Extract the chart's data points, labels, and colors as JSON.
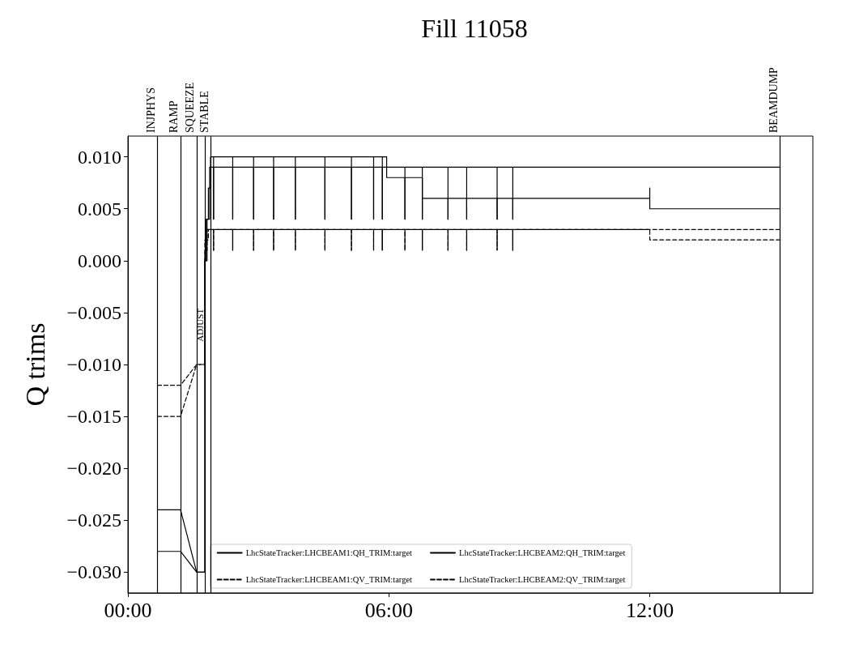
{
  "chart_data": {
    "type": "line",
    "title": "Fill 11058",
    "ylabel": "Q trims",
    "xlim": [
      0,
      15.75
    ],
    "xticks": [
      {
        "value": 0,
        "label": "00:00"
      },
      {
        "value": 6,
        "label": "06:00"
      },
      {
        "value": 12,
        "label": "12:00"
      }
    ],
    "ylim": [
      -0.032,
      0.012
    ],
    "yticks": [
      {
        "value": 0.01,
        "label": "0.010"
      },
      {
        "value": 0.005,
        "label": "0.005"
      },
      {
        "value": 0,
        "label": "0.000"
      },
      {
        "value": -0.005,
        "label": "−0.005"
      },
      {
        "value": -0.01,
        "label": "−0.010"
      },
      {
        "value": -0.015,
        "label": "−0.015"
      },
      {
        "value": -0.02,
        "label": "−0.020"
      },
      {
        "value": -0.025,
        "label": "−0.025"
      },
      {
        "value": -0.03,
        "label": "−0.030"
      }
    ],
    "grid": false,
    "legend": "bottom",
    "marker": "none",
    "series": [
      {
        "name": "LhcStateTracker:LHCBEAM1:QH_TRIM:target",
        "color": "#000000",
        "line_style": "solid",
        "x": [
          0.68,
          1.21,
          1.58,
          1.77,
          1.77,
          1.8,
          1.8,
          1.85,
          1.85,
          1.9,
          1.9,
          1.97,
          1.97,
          1.97,
          2.41,
          2.41,
          2.41,
          2.89,
          2.89,
          2.89,
          3.35,
          3.35,
          3.35,
          3.85,
          3.85,
          3.85,
          4.53,
          4.53,
          4.53,
          5.14,
          5.14,
          5.14,
          5.65,
          5.65,
          5.65,
          5.85,
          5.85,
          5.85,
          5.95,
          5.95,
          6.37,
          6.37,
          6.37,
          6.77,
          6.77,
          6.77,
          7.36,
          7.36,
          7.36,
          7.79,
          7.79,
          7.79,
          8.49,
          8.49,
          8.49,
          8.85,
          8.85,
          8.85,
          12,
          12,
          12,
          15
        ],
        "values": [
          -0.024,
          -0.024,
          -0.03,
          -0.03,
          0,
          0,
          0.004,
          0.004,
          0.007,
          0.007,
          0.01,
          0.01,
          0.004,
          0.01,
          0.01,
          0.004,
          0.01,
          0.01,
          0.004,
          0.01,
          0.01,
          0.004,
          0.01,
          0.01,
          0.004,
          0.01,
          0.01,
          0.004,
          0.01,
          0.01,
          0.004,
          0.01,
          0.01,
          0.004,
          0.01,
          0.01,
          0.004,
          0.01,
          0.01,
          0.008,
          0.008,
          0.004,
          0.008,
          0.008,
          0.004,
          0.006,
          0.006,
          0.004,
          0.006,
          0.006,
          0.004,
          0.006,
          0.006,
          0.004,
          0.006,
          0.006,
          0.004,
          0.006,
          0.006,
          0.007,
          0.005,
          0.005
        ]
      },
      {
        "name": "LhcStateTracker:LHCBEAM1:QV_TRIM:target",
        "color": "#000000",
        "line_style": "dashed",
        "x": [
          0.68,
          1.21,
          1.58,
          1.77,
          1.77,
          1.85,
          1.85,
          1.97,
          1.97,
          1.97,
          2.41,
          2.41,
          2.41,
          2.89,
          2.89,
          2.89,
          3.35,
          3.35,
          3.35,
          3.85,
          3.85,
          3.85,
          4.53,
          4.53,
          4.53,
          5.14,
          5.14,
          5.14,
          5.65,
          5.65,
          5.65,
          5.85,
          5.85,
          5.85,
          6.37,
          6.37,
          6.37,
          6.77,
          6.77,
          6.77,
          7.36,
          7.36,
          7.36,
          7.79,
          7.79,
          7.79,
          8.49,
          8.49,
          8.49,
          8.85,
          8.85,
          8.85,
          15
        ],
        "values": [
          -0.012,
          -0.012,
          -0.01,
          -0.01,
          0.002,
          0.002,
          0.003,
          0.003,
          0.001,
          0.003,
          0.003,
          0.001,
          0.003,
          0.003,
          0.001,
          0.003,
          0.003,
          0.001,
          0.003,
          0.003,
          0.001,
          0.003,
          0.003,
          0.001,
          0.003,
          0.003,
          0.001,
          0.003,
          0.003,
          0.001,
          0.003,
          0.003,
          0.001,
          0.003,
          0.003,
          0.001,
          0.003,
          0.003,
          0.001,
          0.003,
          0.003,
          0.001,
          0.003,
          0.003,
          0.001,
          0.003,
          0.003,
          0.001,
          0.003,
          0.003,
          0.001,
          0.003,
          0.003
        ]
      },
      {
        "name": "LhcStateTracker:LHCBEAM2:QH_TRIM:target",
        "color": "#000000",
        "line_style": "solid",
        "x": [
          0.68,
          1.21,
          1.58,
          1.77,
          1.77,
          1.82,
          1.82,
          1.88,
          1.88,
          1.97,
          1.97,
          1.97,
          2.41,
          2.41,
          2.41,
          2.89,
          2.89,
          2.89,
          3.35,
          3.35,
          3.35,
          3.85,
          3.85,
          3.85,
          4.53,
          4.53,
          4.53,
          5.14,
          5.14,
          5.14,
          5.65,
          5.65,
          5.65,
          5.85,
          5.85,
          5.85,
          6.37,
          6.37,
          6.37,
          6.77,
          6.77,
          6.77,
          7.36,
          7.36,
          7.36,
          7.79,
          7.79,
          7.79,
          8.49,
          8.49,
          8.49,
          8.85,
          8.85,
          8.85,
          15
        ],
        "values": [
          -0.028,
          -0.028,
          -0.03,
          -0.03,
          0,
          0,
          0.004,
          0.004,
          0.009,
          0.009,
          0.004,
          0.009,
          0.009,
          0.004,
          0.009,
          0.009,
          0.004,
          0.009,
          0.009,
          0.004,
          0.009,
          0.009,
          0.004,
          0.009,
          0.009,
          0.004,
          0.009,
          0.009,
          0.004,
          0.009,
          0.009,
          0.004,
          0.009,
          0.009,
          0.004,
          0.009,
          0.009,
          0.004,
          0.009,
          0.009,
          0.004,
          0.009,
          0.009,
          0.004,
          0.009,
          0.009,
          0.004,
          0.009,
          0.009,
          0.004,
          0.009,
          0.009,
          0.004,
          0.009,
          0.009
        ]
      },
      {
        "name": "LhcStateTracker:LHCBEAM2:QV_TRIM:target",
        "color": "#000000",
        "line_style": "dashed",
        "x": [
          0.68,
          1.21,
          1.58,
          1.77,
          1.77,
          1.82,
          1.82,
          1.97,
          1.97,
          1.97,
          2.41,
          2.41,
          2.41,
          2.89,
          2.89,
          2.89,
          3.35,
          3.35,
          3.35,
          3.85,
          3.85,
          3.85,
          4.53,
          4.53,
          4.53,
          5.14,
          5.14,
          5.14,
          5.65,
          5.65,
          5.65,
          5.85,
          5.85,
          5.85,
          6.37,
          6.37,
          6.37,
          6.77,
          6.77,
          6.77,
          7.36,
          7.36,
          7.36,
          7.79,
          7.79,
          7.79,
          8.49,
          8.49,
          8.49,
          8.85,
          8.85,
          8.85,
          12,
          12,
          15
        ],
        "values": [
          -0.015,
          -0.015,
          -0.01,
          -0.01,
          0.001,
          0.001,
          0.003,
          0.003,
          0.001,
          0.003,
          0.003,
          0.001,
          0.003,
          0.003,
          0.001,
          0.003,
          0.003,
          0.001,
          0.003,
          0.003,
          0.001,
          0.003,
          0.003,
          0.001,
          0.003,
          0.003,
          0.001,
          0.003,
          0.003,
          0.001,
          0.003,
          0.003,
          0.001,
          0.003,
          0.003,
          0.001,
          0.003,
          0.003,
          0.001,
          0.003,
          0.003,
          0.001,
          0.003,
          0.003,
          0.001,
          0.003,
          0.003,
          0.001,
          0.003,
          0.003,
          0.001,
          0.003,
          0.003,
          0.002,
          0.002
        ]
      }
    ],
    "ref_lines": [
      {
        "axis": "x",
        "value": 0.68,
        "label": "INJPHYS",
        "color": "#000000"
      },
      {
        "axis": "x",
        "value": 1.21,
        "label": "RAMP",
        "color": "#000000"
      },
      {
        "axis": "x",
        "value": 1.58,
        "label": "SQUEEZE",
        "color": "#000000"
      },
      {
        "axis": "x",
        "value": 1.77,
        "label": "ADJUST",
        "color": "#000000"
      },
      {
        "axis": "x",
        "value": 1.9,
        "label": "STABLE",
        "color": "#000000"
      },
      {
        "axis": "x",
        "value": 15,
        "label": "BEAMDUMP",
        "color": "#000000"
      }
    ]
  }
}
